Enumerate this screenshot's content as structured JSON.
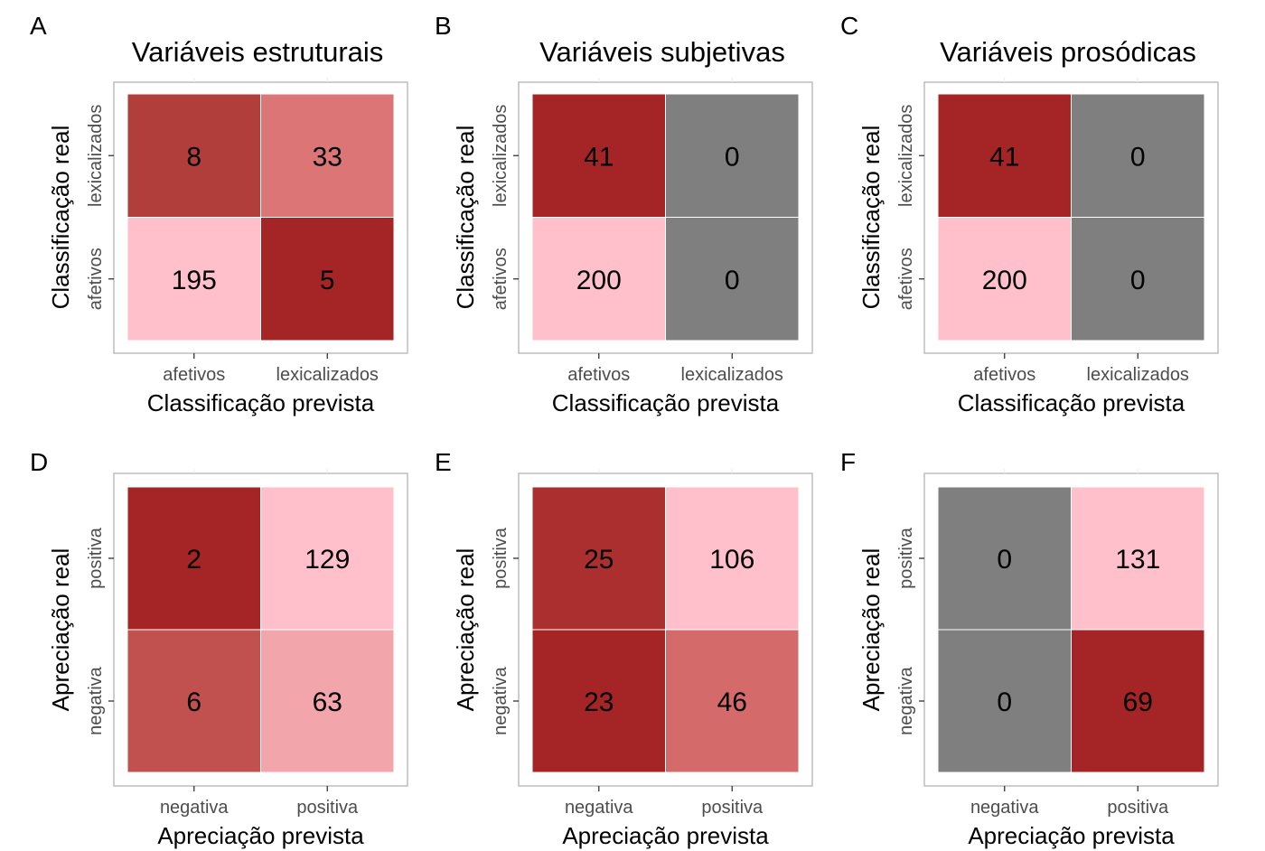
{
  "colors": {
    "high": "#a52526",
    "low": "#ffc0cb",
    "zero": "#7f7f7f",
    "panel_border": "#b3b3b3",
    "tick": "#333333"
  },
  "chart_data": [
    {
      "type": "heatmap",
      "panel": "A",
      "title": "Variáveis estruturais",
      "xlabel": "Classificação prevista",
      "ylabel": "Classificação real",
      "x_categories": [
        "afetivos",
        "lexicalizados"
      ],
      "y_categories": [
        "lexicalizados",
        "afetivos"
      ],
      "values": [
        [
          8,
          33
        ],
        [
          195,
          5
        ]
      ],
      "fills": [
        [
          "#b23e3b",
          "#dc7676"
        ],
        [
          "#ffc0cb",
          "#a52526"
        ]
      ]
    },
    {
      "type": "heatmap",
      "panel": "B",
      "title": "Variáveis subjetivas",
      "xlabel": "Classificação prevista",
      "ylabel": "Classificação real",
      "x_categories": [
        "afetivos",
        "lexicalizados"
      ],
      "y_categories": [
        "lexicalizados",
        "afetivos"
      ],
      "values": [
        [
          41,
          0
        ],
        [
          200,
          0
        ]
      ],
      "fills": [
        [
          "#a52526",
          "#7f7f7f"
        ],
        [
          "#ffc0cb",
          "#7f7f7f"
        ]
      ]
    },
    {
      "type": "heatmap",
      "panel": "C",
      "title": "Variáveis prosódicas",
      "xlabel": "Classificação prevista",
      "ylabel": "Classificação real",
      "x_categories": [
        "afetivos",
        "lexicalizados"
      ],
      "y_categories": [
        "lexicalizados",
        "afetivos"
      ],
      "values": [
        [
          41,
          0
        ],
        [
          200,
          0
        ]
      ],
      "fills": [
        [
          "#a52526",
          "#7f7f7f"
        ],
        [
          "#ffc0cb",
          "#7f7f7f"
        ]
      ]
    },
    {
      "type": "heatmap",
      "panel": "D",
      "title": "",
      "xlabel": "Apreciação prevista",
      "ylabel": "Apreciação real",
      "x_categories": [
        "negativa",
        "positiva"
      ],
      "y_categories": [
        "positiva",
        "negativa"
      ],
      "values": [
        [
          2,
          129
        ],
        [
          6,
          63
        ]
      ],
      "fills": [
        [
          "#a52526",
          "#ffc0cb"
        ],
        [
          "#c0514e",
          "#f2a5aa"
        ]
      ]
    },
    {
      "type": "heatmap",
      "panel": "E",
      "title": "",
      "xlabel": "Apreciação prevista",
      "ylabel": "Apreciação real",
      "x_categories": [
        "negativa",
        "positiva"
      ],
      "y_categories": [
        "positiva",
        "negativa"
      ],
      "values": [
        [
          25,
          106
        ],
        [
          23,
          46
        ]
      ],
      "fills": [
        [
          "#ac2f2f",
          "#ffc0cb"
        ],
        [
          "#a52526",
          "#d56a6a"
        ]
      ]
    },
    {
      "type": "heatmap",
      "panel": "F",
      "title": "",
      "xlabel": "Apreciação prevista",
      "ylabel": "Apreciação real",
      "x_categories": [
        "negativa",
        "positiva"
      ],
      "y_categories": [
        "positiva",
        "negativa"
      ],
      "values": [
        [
          0,
          131
        ],
        [
          0,
          69
        ]
      ],
      "fills": [
        [
          "#7f7f7f",
          "#ffc0cb"
        ],
        [
          "#7f7f7f",
          "#a52526"
        ]
      ]
    }
  ]
}
